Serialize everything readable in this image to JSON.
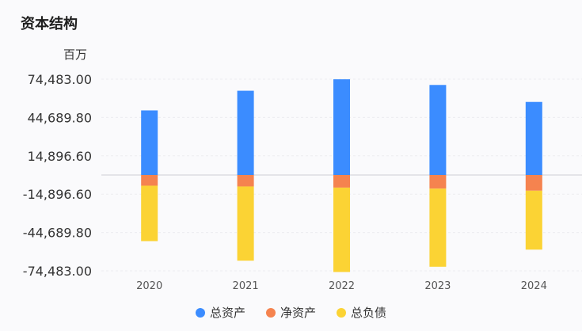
{
  "title": "资本结构",
  "unit": "百万",
  "chart_data": {
    "type": "bar",
    "categories": [
      "2020",
      "2021",
      "2022",
      "2023",
      "2024"
    ],
    "y_ticks": [
      "74,483.00",
      "44,689.80",
      "14,896.60",
      "-14,896.60",
      "-44,689.80",
      "-74,483.00"
    ],
    "ylim": [
      -74483,
      74483
    ],
    "series": [
      {
        "name": "总资产",
        "color": "#3b8cff",
        "values": [
          50200,
          65500,
          74400,
          70000,
          56800
        ]
      },
      {
        "name": "净资产",
        "color": "#f5834f",
        "values": [
          -8300,
          -8900,
          -9800,
          -10600,
          -12200
        ]
      },
      {
        "name": "总负债",
        "color": "#fbd334",
        "values": [
          -43100,
          -57700,
          -65600,
          -60700,
          -45800
        ]
      }
    ]
  }
}
